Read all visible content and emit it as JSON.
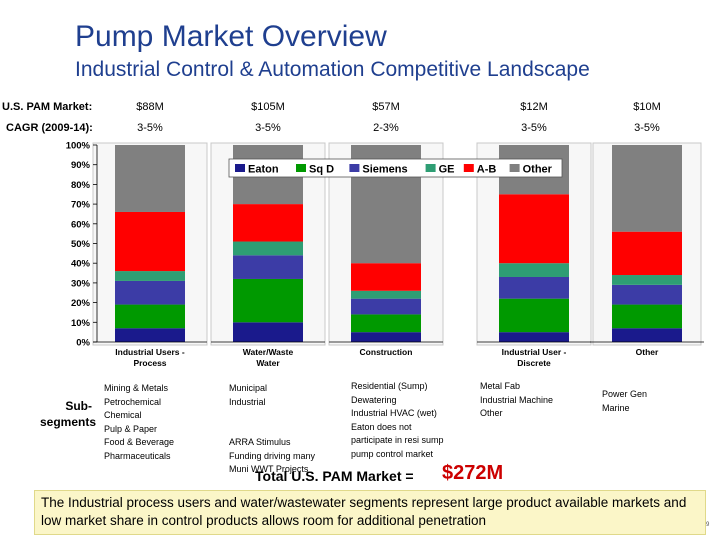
{
  "header": {
    "title": "Pump Market Overview",
    "subtitle": "Industrial Control & Automation Competitive Landscape"
  },
  "market_row": {
    "label": "U.S. PAM Market:",
    "values": [
      "$88M",
      "$105M",
      "$57M",
      "$12M",
      "$10M"
    ]
  },
  "cagr_row": {
    "label": "CAGR (2009-14):",
    "values": [
      "3-5%",
      "3-5%",
      "2-3%",
      "3-5%",
      "3-5%"
    ]
  },
  "chart_data": {
    "type": "bar",
    "stacked": true,
    "categories": [
      "Industrial Users - Process",
      "Water/Waste Water",
      "Construction",
      "Industrial User - Discrete",
      "Other"
    ],
    "ylim": [
      0,
      100
    ],
    "y_ticks": [
      "0%",
      "10%",
      "20%",
      "30%",
      "40%",
      "50%",
      "60%",
      "70%",
      "80%",
      "90%",
      "100%"
    ],
    "legend_position": "top",
    "series": [
      {
        "name": "Eaton",
        "color": "#1a1a8c",
        "values": [
          7,
          10,
          5,
          5,
          7
        ]
      },
      {
        "name": "Sq D",
        "color": "#009900",
        "values": [
          12,
          22,
          9,
          17,
          12
        ]
      },
      {
        "name": "Siemens",
        "color": "#3c3ca6",
        "values": [
          12,
          12,
          8,
          11,
          10
        ]
      },
      {
        "name": "GE",
        "color": "#2e9e74",
        "values": [
          5,
          7,
          4,
          7,
          5
        ]
      },
      {
        "name": "A-B",
        "color": "#ff0000",
        "values": [
          30,
          19,
          14,
          35,
          22
        ]
      },
      {
        "name": "Other",
        "color": "#808080",
        "values": [
          34,
          30,
          60,
          25,
          44
        ]
      }
    ]
  },
  "subsegments": {
    "label": "Sub-\nsegments",
    "columns": [
      [
        "Mining & Metals",
        "Petrochemical",
        "Chemical",
        "Pulp & Paper",
        "Food & Beverage",
        "Pharmaceuticals"
      ],
      [
        "Municipal",
        "Industrial",
        "",
        "",
        "ARRA Stimulus",
        "Funding driving many",
        "Muni WWT Projects"
      ],
      [
        "Residential (Sump)",
        "Dewatering",
        "Industrial HVAC (wet)",
        "Eaton does not",
        "participate in resi sump",
        "pump control market"
      ],
      [
        "Metal Fab",
        "Industrial Machine",
        "Other"
      ],
      [
        "Power Gen",
        "Marine"
      ]
    ]
  },
  "total": {
    "label": "Total U.S. PAM Market =",
    "value": "$272M"
  },
  "note": "The Industrial process users and water/wastewater segments represent large product available markets and low market share in control products allows room for additional penetration",
  "page_number": "9"
}
